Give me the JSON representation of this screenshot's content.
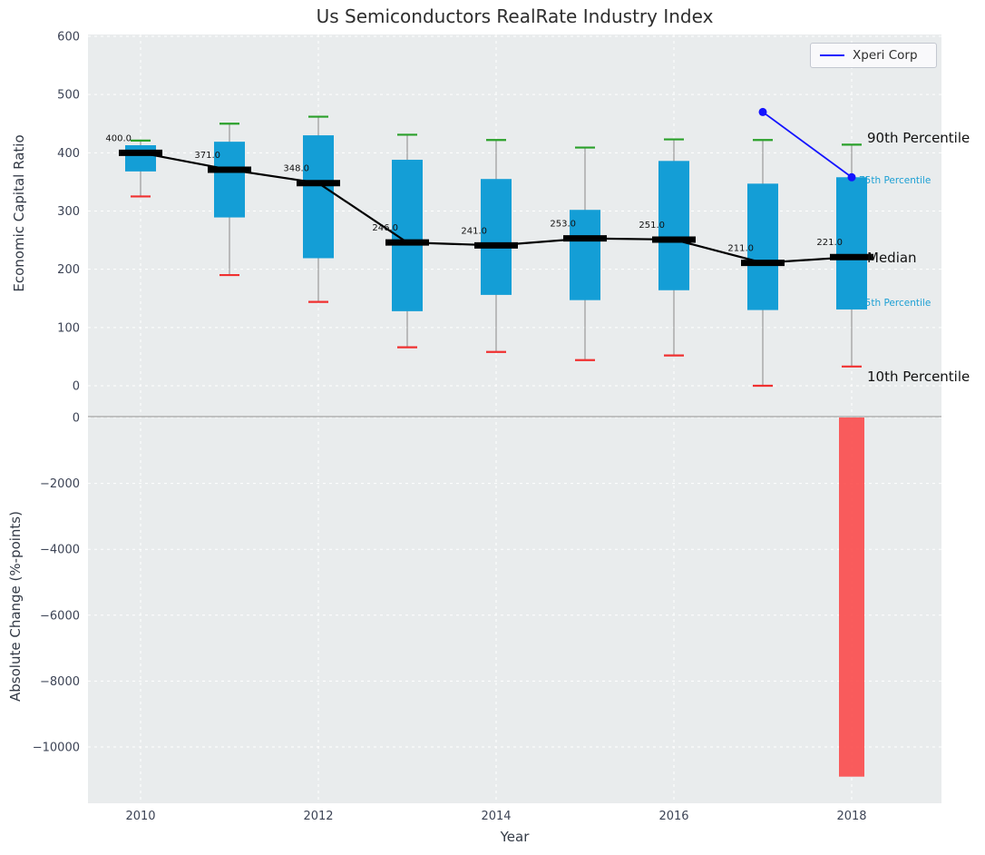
{
  "title": "Us Semiconductors RealRate Industry Index",
  "legend": {
    "label": "Xperi Corp"
  },
  "colors": {
    "background": "#e9eced",
    "grid": "#ffffff",
    "box": "#149ed6",
    "median": "#000000",
    "whisker": "#9a9a9a",
    "cap_high": "#2aa02a",
    "cap_low": "#f03030",
    "line": "#1414ff",
    "bar": "#fb4b4b",
    "zero_line": "#b0b0b0",
    "tick": "#3d4456",
    "annotation_primary": "#111111",
    "annotation_secondary": "#1b9fd4"
  },
  "chart_data": [
    {
      "type": "boxplot",
      "title": "Us Semiconductors RealRate Industry Index",
      "ylabel": "Economic Capital Ratio",
      "xlabel": "Year",
      "ylim": [
        -52,
        600
      ],
      "grid": true,
      "legend_position": "upper right",
      "yticks": [
        600,
        500,
        400,
        300,
        200,
        100,
        0
      ],
      "ytick_labels": [
        "600",
        "500",
        "400",
        "300",
        "200",
        "100",
        "0"
      ],
      "xticks": [
        2010,
        2012,
        2014,
        2016,
        2018
      ],
      "xtick_labels": [
        "2010",
        "2012",
        "2014",
        "2016",
        "2018"
      ],
      "boxes": [
        {
          "year": 2010,
          "median": 400,
          "median_label": "400.0",
          "q1": 368,
          "q3": 413,
          "p10": 325,
          "p90": 421
        },
        {
          "year": 2011,
          "median": 371,
          "median_label": "371.0",
          "q1": 289,
          "q3": 419,
          "p10": 190,
          "p90": 450
        },
        {
          "year": 2012,
          "median": 348,
          "median_label": "348.0",
          "q1": 219,
          "q3": 430,
          "p10": 144,
          "p90": 462
        },
        {
          "year": 2013,
          "median": 246,
          "median_label": "246.0",
          "q1": 128,
          "q3": 388,
          "p10": 66,
          "p90": 431
        },
        {
          "year": 2014,
          "median": 241,
          "median_label": "241.0",
          "q1": 156,
          "q3": 355,
          "p10": 58,
          "p90": 422
        },
        {
          "year": 2015,
          "median": 253,
          "median_label": "253.0",
          "q1": 147,
          "q3": 302,
          "p10": 44,
          "p90": 409
        },
        {
          "year": 2016,
          "median": 251,
          "median_label": "251.0",
          "q1": 164,
          "q3": 386,
          "p10": 52,
          "p90": 423
        },
        {
          "year": 2017,
          "median": 211,
          "median_label": "211.0",
          "q1": 130,
          "q3": 347,
          "p10": 0,
          "p90": 422
        },
        {
          "year": 2018,
          "median": 221,
          "median_label": "221.0",
          "q1": 131,
          "q3": 358,
          "p10": 33,
          "p90": 414
        }
      ],
      "series": [
        {
          "name": "Xperi Corp",
          "x": [
            2017,
            2018
          ],
          "y": [
            470,
            358
          ]
        }
      ],
      "annotations": [
        {
          "label": "90th Percentile",
          "y": 426,
          "style": "primary"
        },
        {
          "label": "75th Percentile",
          "y": 352,
          "style": "secondary"
        },
        {
          "label": "Median",
          "y": 220,
          "style": "primary"
        },
        {
          "label": "25th Percentile",
          "y": 142,
          "style": "secondary"
        },
        {
          "label": "10th Percentile",
          "y": 16,
          "style": "primary"
        }
      ]
    },
    {
      "type": "bar",
      "ylabel": "Absolute Change (%-points)",
      "xlabel": "Year",
      "ylim": [
        -11700,
        55
      ],
      "yticks": [
        0,
        -2000,
        -4000,
        -6000,
        -8000,
        -10000
      ],
      "ytick_labels": [
        "0",
        "−2000",
        "−4000",
        "−6000",
        "−8000",
        "−10000"
      ],
      "categories": [
        2018
      ],
      "values": [
        -10900
      ]
    }
  ]
}
